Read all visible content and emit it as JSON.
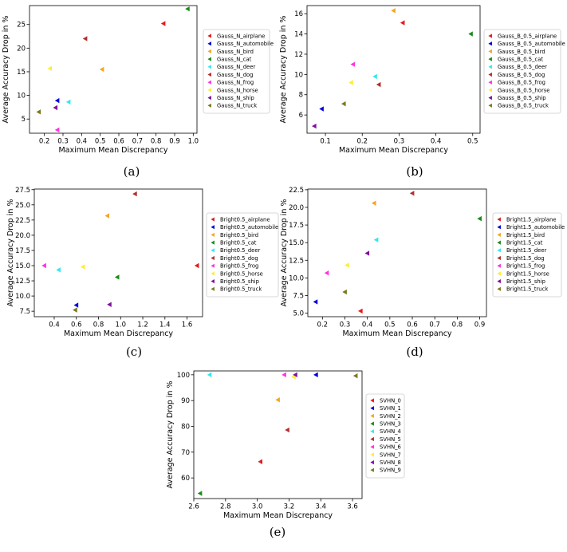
{
  "figure": {
    "captions": [
      "(a)",
      "(b)",
      "(c)",
      "(d)",
      "(e)"
    ]
  },
  "chart_data": [
    {
      "type": "scatter",
      "caption": "(a)",
      "xlabel": "Maximum Mean Discrepancy",
      "ylabel": "Average Accuracy Drop in %",
      "xlim": [
        0.12,
        1.02
      ],
      "ylim": [
        2.0,
        29.0
      ],
      "xticks": [
        0.2,
        0.3,
        0.4,
        0.5,
        0.6,
        0.7,
        0.8,
        0.9,
        1.0
      ],
      "xtick_labels": [
        "0.2",
        "0.3",
        "0.4",
        "0.5",
        "0.6",
        "0.7",
        "0.8",
        "0.9",
        "1.0"
      ],
      "yticks": [
        5,
        10,
        15,
        20,
        25
      ],
      "ytick_labels": [
        "5",
        "10",
        "15",
        "20",
        "25"
      ],
      "legend_position": "right",
      "grid": false,
      "series": [
        {
          "name": "Gauss_N_airplane",
          "color": "#e41a1c",
          "x": 0.84,
          "y": 25.2
        },
        {
          "name": "Gauss_N_automobile",
          "color": "#0000dd",
          "x": 0.27,
          "y": 8.9
        },
        {
          "name": "Gauss_N_bird",
          "color": "#f5a623",
          "x": 0.51,
          "y": 15.5
        },
        {
          "name": "Gauss_N_cat",
          "color": "#1a8c1a",
          "x": 0.97,
          "y": 28.3
        },
        {
          "name": "Gauss_N_deer",
          "color": "#33e8f0",
          "x": 0.33,
          "y": 8.6
        },
        {
          "name": "Gauss_N_dog",
          "color": "#b03030",
          "x": 0.42,
          "y": 22.0
        },
        {
          "name": "Gauss_N_frog",
          "color": "#ff33dd",
          "x": 0.27,
          "y": 2.7
        },
        {
          "name": "Gauss_N_horse",
          "color": "#ffee33",
          "x": 0.23,
          "y": 15.7
        },
        {
          "name": "Gauss_N_ship",
          "color": "#8010a0",
          "x": 0.26,
          "y": 7.4
        },
        {
          "name": "Gauss_N_truck",
          "color": "#7a7a1a",
          "x": 0.17,
          "y": 6.5
        }
      ]
    },
    {
      "type": "scatter",
      "caption": "(b)",
      "xlabel": "Maximum Mean Discrepancy",
      "ylabel": "Average Accuracy Drop in %",
      "xlim": [
        0.05,
        0.52
      ],
      "ylim": [
        4.2,
        16.8
      ],
      "xticks": [
        0.1,
        0.2,
        0.3,
        0.4,
        0.5
      ],
      "xtick_labels": [
        "0.1",
        "0.2",
        "0.3",
        "0.4",
        "0.5"
      ],
      "yticks": [
        6,
        8,
        10,
        12,
        14,
        16
      ],
      "ytick_labels": [
        "6",
        "8",
        "10",
        "12",
        "14",
        "16"
      ],
      "legend_position": "right",
      "grid": false,
      "series": [
        {
          "name": "Gauss_B_0.5_airplane",
          "color": "#e41a1c",
          "x": 0.31,
          "y": 15.1
        },
        {
          "name": "Gauss_B_0.5_automobile",
          "color": "#0000dd",
          "x": 0.09,
          "y": 6.6
        },
        {
          "name": "Gauss_B_0.5_bird",
          "color": "#f5a623",
          "x": 0.285,
          "y": 16.3
        },
        {
          "name": "Gauss_B_0.5_cat",
          "color": "#1a8c1a",
          "x": 0.495,
          "y": 14.0
        },
        {
          "name": "Gauss_B_0.5_deer",
          "color": "#33e8f0",
          "x": 0.235,
          "y": 9.8
        },
        {
          "name": "Gauss_B_0.5_dog",
          "color": "#b03030",
          "x": 0.245,
          "y": 9.0
        },
        {
          "name": "Gauss_B_0.5_frog",
          "color": "#ff33dd",
          "x": 0.175,
          "y": 11.0
        },
        {
          "name": "Gauss_B_0.5_horse",
          "color": "#ffee33",
          "x": 0.17,
          "y": 9.2
        },
        {
          "name": "Gauss_B_0.5_ship",
          "color": "#8010a0",
          "x": 0.07,
          "y": 4.9
        },
        {
          "name": "Gauss_B_0.5_truck",
          "color": "#7a7a1a",
          "x": 0.15,
          "y": 7.1
        }
      ]
    },
    {
      "type": "scatter",
      "caption": "(c)",
      "xlabel": "Maximum Mean Discrepancy",
      "ylabel": "Average Accuracy Drop in %",
      "xlim": [
        0.22,
        1.74
      ],
      "ylim": [
        6.6,
        27.6
      ],
      "xticks": [
        0.4,
        0.6,
        0.8,
        1.0,
        1.2,
        1.4,
        1.6
      ],
      "xtick_labels": [
        "0.4",
        "0.6",
        "0.8",
        "1.0",
        "1.2",
        "1.4",
        "1.6"
      ],
      "yticks": [
        7.5,
        10.0,
        12.5,
        15.0,
        17.5,
        20.0,
        22.5,
        25.0,
        27.5
      ],
      "ytick_labels": [
        "7.5",
        "10.0",
        "12.5",
        "15.0",
        "17.5",
        "20.0",
        "22.5",
        "25.0",
        "27.5"
      ],
      "legend_position": "right",
      "grid": false,
      "series": [
        {
          "name": "Bright0.5_airplane",
          "color": "#e41a1c",
          "x": 1.69,
          "y": 15.0
        },
        {
          "name": "Bright0.5_automobile",
          "color": "#0000dd",
          "x": 0.6,
          "y": 8.5
        },
        {
          "name": "Bright0.5_bird",
          "color": "#f5a623",
          "x": 0.88,
          "y": 23.2
        },
        {
          "name": "Bright0.5_cat",
          "color": "#1a8c1a",
          "x": 0.97,
          "y": 13.1
        },
        {
          "name": "Bright0.5_deer",
          "color": "#33e8f0",
          "x": 0.44,
          "y": 14.3
        },
        {
          "name": "Bright0.5_dog",
          "color": "#b03030",
          "x": 1.13,
          "y": 26.8
        },
        {
          "name": "Bright0.5_frog",
          "color": "#ff33dd",
          "x": 0.31,
          "y": 15.0
        },
        {
          "name": "Bright0.5_horse",
          "color": "#ffee33",
          "x": 0.66,
          "y": 14.8
        },
        {
          "name": "Bright0.5_ship",
          "color": "#8010a0",
          "x": 0.9,
          "y": 8.6
        },
        {
          "name": "Bright0.5_truck",
          "color": "#7a7a1a",
          "x": 0.59,
          "y": 7.7
        }
      ]
    },
    {
      "type": "scatter",
      "caption": "(d)",
      "xlabel": "Maximum Mean Discrepancy",
      "ylabel": "Average Accuracy Drop in %",
      "xlim": [
        0.135,
        0.93
      ],
      "ylim": [
        4.5,
        22.6
      ],
      "xticks": [
        0.2,
        0.3,
        0.4,
        0.5,
        0.6,
        0.7,
        0.8,
        0.9
      ],
      "xtick_labels": [
        "0.2",
        "0.3",
        "0.4",
        "0.5",
        "0.6",
        "0.7",
        "0.8",
        "0.9"
      ],
      "yticks": [
        5.0,
        7.5,
        10.0,
        12.5,
        15.0,
        17.5,
        20.0,
        22.5
      ],
      "ytick_labels": [
        "5.0",
        "7.5",
        "10.0",
        "12.5",
        "15.0",
        "17.5",
        "20.0",
        "22.5"
      ],
      "legend_position": "right",
      "grid": false,
      "series": [
        {
          "name": "Bright1.5_airplane",
          "color": "#e41a1c",
          "x": 0.37,
          "y": 5.3
        },
        {
          "name": "Bright1.5_automobile",
          "color": "#0000dd",
          "x": 0.17,
          "y": 6.6
        },
        {
          "name": "Bright1.5_bird",
          "color": "#f5a623",
          "x": 0.43,
          "y": 20.6
        },
        {
          "name": "Bright1.5_cat",
          "color": "#1a8c1a",
          "x": 0.9,
          "y": 18.4
        },
        {
          "name": "Bright1.5_deer",
          "color": "#33e8f0",
          "x": 0.44,
          "y": 15.4
        },
        {
          "name": "Bright1.5_dog",
          "color": "#b03030",
          "x": 0.6,
          "y": 22.0
        },
        {
          "name": "Bright1.5_frog",
          "color": "#ff33dd",
          "x": 0.22,
          "y": 10.7
        },
        {
          "name": "Bright1.5_horse",
          "color": "#ffee33",
          "x": 0.31,
          "y": 11.8
        },
        {
          "name": "Bright1.5_ship",
          "color": "#8010a0",
          "x": 0.4,
          "y": 13.5
        },
        {
          "name": "Bright1.5_truck",
          "color": "#7a7a1a",
          "x": 0.3,
          "y": 8.0
        }
      ]
    },
    {
      "type": "scatter",
      "caption": "(e)",
      "xlabel": "Maximum Mean Discrepancy",
      "ylabel": "Average Accuracy Drop in %",
      "xlim": [
        2.6,
        3.66
      ],
      "ylim": [
        52.0,
        101.5
      ],
      "xticks": [
        2.6,
        2.8,
        3.0,
        3.2,
        3.4,
        3.6
      ],
      "xtick_labels": [
        "2.6",
        "2.8",
        "3.0",
        "3.2",
        "3.4",
        "3.6"
      ],
      "yticks": [
        60,
        70,
        80,
        90,
        100
      ],
      "ytick_labels": [
        "60",
        "70",
        "80",
        "90",
        "100"
      ],
      "legend_position": "right",
      "grid": false,
      "series": [
        {
          "name": "SVHN_0",
          "color": "#e41a1c",
          "x": 3.02,
          "y": 66.3
        },
        {
          "name": "SVHN_1",
          "color": "#0000dd",
          "x": 3.37,
          "y": 100.0
        },
        {
          "name": "SVHN_2",
          "color": "#f5a623",
          "x": 3.13,
          "y": 90.3
        },
        {
          "name": "SVHN_3",
          "color": "#1a8c1a",
          "x": 2.64,
          "y": 54.0
        },
        {
          "name": "SVHN_4",
          "color": "#33e8f0",
          "x": 2.7,
          "y": 100.0
        },
        {
          "name": "SVHN_5",
          "color": "#b03030",
          "x": 3.19,
          "y": 78.6
        },
        {
          "name": "SVHN_6",
          "color": "#ff33dd",
          "x": 3.17,
          "y": 100.0
        },
        {
          "name": "SVHN_7",
          "color": "#ffee33",
          "x": 3.23,
          "y": 99.2
        },
        {
          "name": "SVHN_8",
          "color": "#8010a0",
          "x": 3.24,
          "y": 100.0
        },
        {
          "name": "SVHN_9",
          "color": "#7a7a1a",
          "x": 3.62,
          "y": 99.6
        }
      ]
    }
  ]
}
